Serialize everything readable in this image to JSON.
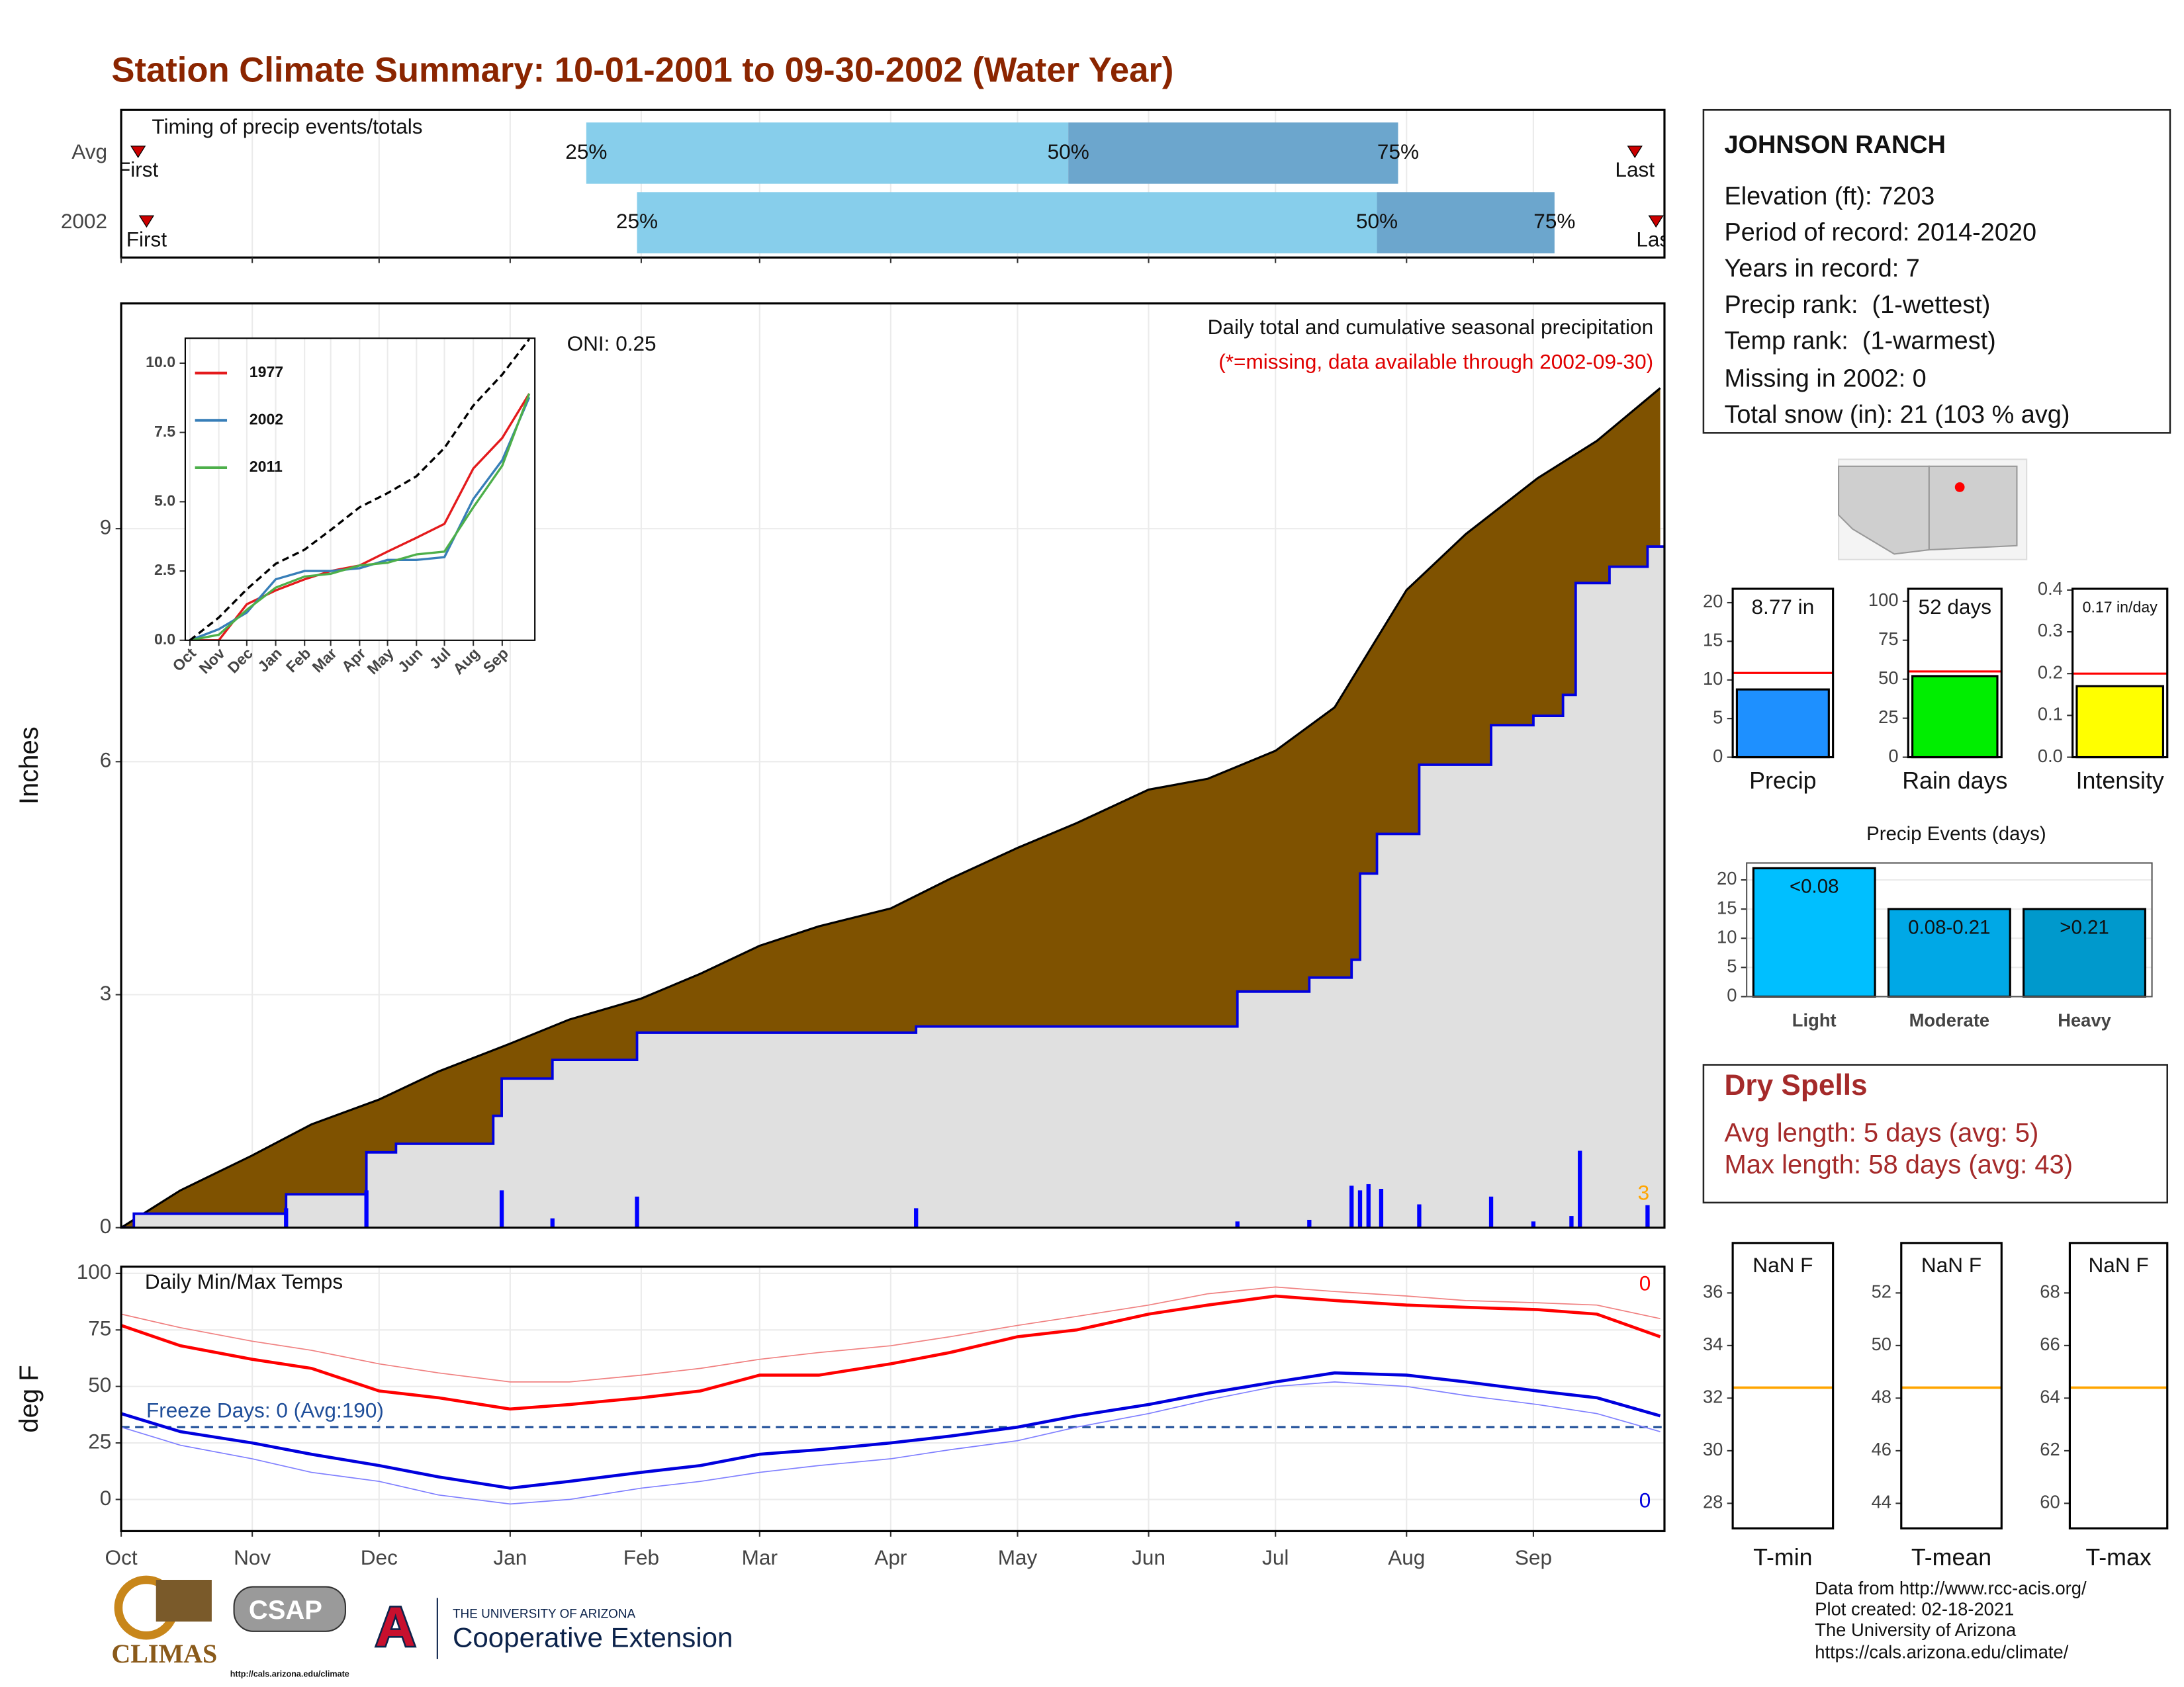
{
  "title": "Station Climate Summary: 10-01-2001 to 09-30-2002 (Water Year)",
  "station": {
    "name": "JOHNSON RANCH",
    "lines": [
      "Elevation (ft): 7203",
      "Period of record: 2014-2020",
      "Years in record: 7",
      "Precip rank:  (1-wettest)",
      "Temp rank:  (1-warmest)",
      "Missing in 2002: 0",
      "Total snow (in): 21 (103 % avg)"
    ]
  },
  "dry_spells": {
    "title": "Dry Spells",
    "lines": [
      "Avg length: 5 days (avg: 5)",
      "Max length: 58 days (avg: 43)"
    ]
  },
  "footer": [
    "Data from http://www.rcc-acis.org/",
    "Plot created: 02-18-2021",
    "The University of Arizona",
    "https://cals.arizona.edu/climate/"
  ],
  "logos": {
    "climas": "CLIMAS",
    "csap": "CSAP",
    "csap_url": "http://cals.arizona.edu/climate",
    "university": "THE UNIVERSITY OF ARIZONA",
    "extension": "Cooperative Extension"
  },
  "chart_data": [
    {
      "type": "range",
      "title": "Timing of precip events/totals",
      "categories": [
        "Avg",
        "2002"
      ],
      "first": [
        4,
        6
      ],
      "q25": [
        110,
        122
      ],
      "q50": [
        224,
        297
      ],
      "q75": [
        302,
        339
      ],
      "last": [
        358,
        363
      ],
      "labels": {
        "first": "First",
        "last": "Last",
        "q25": "25%",
        "q50": "50%",
        "q75": "75%"
      },
      "colors": [
        "#87ceeb",
        "#6ca6cd"
      ],
      "marker_color": "#cc0000",
      "xlim": [
        0,
        365
      ],
      "xticks": [
        0,
        31,
        61,
        92,
        123,
        151,
        182,
        212,
        243,
        273,
        304,
        334
      ]
    },
    {
      "type": "area",
      "title": "Daily total and cumulative seasonal precipitation",
      "subtitle": "(*=missing, data available through 2002-09-30)",
      "annotation": "ONI: 0.25",
      "corner_note": "3",
      "ylabel": "Inches",
      "xlim": [
        0,
        365
      ],
      "ylim": [
        0,
        11.9
      ],
      "yticks": [
        0,
        3,
        6,
        9
      ],
      "xticks": [
        0,
        31,
        61,
        92,
        123,
        151,
        182,
        212,
        243,
        273,
        304,
        334
      ],
      "grid": true,
      "series": [
        {
          "color": "#7f5200",
          "x": [
            0,
            14,
            31,
            45,
            61,
            75,
            92,
            106,
            123,
            137,
            151,
            165,
            182,
            196,
            212,
            226,
            243,
            257,
            273,
            287,
            304,
            318,
            335,
            349,
            364
          ],
          "values": [
            0,
            0.48,
            0.93,
            1.33,
            1.65,
            2.01,
            2.37,
            2.68,
            2.95,
            3.27,
            3.63,
            3.88,
            4.11,
            4.49,
            4.89,
            5.21,
            5.64,
            5.78,
            6.14,
            6.7,
            8.21,
            8.93,
            9.65,
            10.13,
            10.81
          ]
        },
        {
          "color": "#0000e0",
          "fill": "#e0e0e0",
          "step": true,
          "x": [
            0,
            3,
            39,
            58,
            65,
            88,
            90,
            102,
            122,
            188,
            264,
            281,
            291,
            293,
            297,
            307,
            324,
            334,
            341,
            344,
            352,
            361
          ],
          "values": [
            0,
            0.18,
            0.43,
            0.97,
            1.08,
            1.44,
            1.92,
            2.16,
            2.51,
            2.59,
            3.04,
            3.22,
            3.45,
            4.56,
            5.07,
            5.96,
            6.47,
            6.59,
            6.86,
            8.3,
            8.51,
            8.77
          ]
        },
        {
          "kind": "bars",
          "color": "#0000ff",
          "x": [
            39,
            58,
            90,
            102,
            122,
            188,
            264,
            281,
            291,
            293,
            295,
            298,
            307,
            324,
            334,
            343,
            345,
            361
          ],
          "values": [
            0.25,
            0.48,
            0.48,
            0.12,
            0.4,
            0.25,
            0.08,
            0.1,
            0.54,
            0.48,
            0.56,
            0.5,
            0.3,
            0.4,
            0.08,
            0.15,
            0.99,
            0.29
          ]
        }
      ]
    },
    {
      "type": "line",
      "xlim": [
        -5,
        370
      ],
      "ylim": [
        0,
        10.9
      ],
      "yticks": [
        {
          "value": 0,
          "label": "0.0"
        },
        {
          "value": 2.5,
          "label": "2.5"
        },
        {
          "value": 5,
          "label": "5.0"
        },
        {
          "value": 7.5,
          "label": "7.5"
        },
        {
          "value": 10,
          "label": "10.0"
        }
      ],
      "xticks": [
        {
          "value": 0,
          "label": "Oct"
        },
        {
          "value": 31,
          "label": "Nov"
        },
        {
          "value": 61,
          "label": "Dec"
        },
        {
          "value": 92,
          "label": "Jan"
        },
        {
          "value": 123,
          "label": "Feb"
        },
        {
          "value": 151,
          "label": "Mar"
        },
        {
          "value": 182,
          "label": "Apr"
        },
        {
          "value": 212,
          "label": "May"
        },
        {
          "value": 243,
          "label": "Jun"
        },
        {
          "value": 273,
          "label": "Jul"
        },
        {
          "value": 304,
          "label": "Aug"
        },
        {
          "value": 335,
          "label": "Sep"
        }
      ],
      "x": [
        0,
        31,
        61,
        92,
        123,
        151,
        182,
        212,
        243,
        273,
        304,
        335,
        364
      ],
      "series": [
        {
          "name": "1977",
          "color": "#e41a1c",
          "values": [
            0,
            0,
            1.3,
            1.8,
            2.2,
            2.5,
            2.7,
            3.2,
            3.7,
            4.2,
            6.2,
            7.3,
            8.9
          ]
        },
        {
          "name": "2002",
          "color": "#377eb8",
          "values": [
            0,
            0.4,
            1.0,
            2.2,
            2.5,
            2.5,
            2.6,
            2.9,
            2.9,
            3.0,
            5.1,
            6.5,
            8.77
          ]
        },
        {
          "name": "2011",
          "color": "#4daf4a",
          "values": [
            0,
            0.2,
            1.1,
            1.9,
            2.3,
            2.4,
            2.7,
            2.8,
            3.1,
            3.2,
            4.8,
            6.3,
            8.9
          ]
        },
        {
          "color": "#000000",
          "dash": true,
          "values": [
            0,
            0.82,
            1.84,
            2.76,
            3.27,
            3.98,
            4.8,
            5.31,
            5.92,
            6.94,
            8.47,
            9.59,
            10.87
          ]
        }
      ]
    },
    {
      "type": "line",
      "title": "Daily Min/Max Temps",
      "ylabel": "deg F",
      "annotation": "Freeze Days: 0 (Avg:190)",
      "max_note": "0",
      "min_note": "0",
      "freeze_line": 32,
      "xlim": [
        0,
        365
      ],
      "ylim": [
        -14,
        103
      ],
      "yticks": [
        0,
        25,
        50,
        75,
        100
      ],
      "grid": true,
      "xticks": [
        {
          "value": 0,
          "label": "Oct"
        },
        {
          "value": 31,
          "label": "Nov"
        },
        {
          "value": 61,
          "label": "Dec"
        },
        {
          "value": 92,
          "label": "Jan"
        },
        {
          "value": 123,
          "label": "Feb"
        },
        {
          "value": 151,
          "label": "Mar"
        },
        {
          "value": 182,
          "label": "Apr"
        },
        {
          "value": 212,
          "label": "May"
        },
        {
          "value": 243,
          "label": "Jun"
        },
        {
          "value": 273,
          "label": "Jul"
        },
        {
          "value": 304,
          "label": "Aug"
        },
        {
          "value": 334,
          "label": "Sep"
        }
      ],
      "x": [
        0,
        14,
        31,
        45,
        61,
        75,
        92,
        106,
        123,
        137,
        151,
        165,
        182,
        196,
        212,
        226,
        243,
        257,
        273,
        287,
        304,
        318,
        335,
        349,
        364
      ],
      "series": [
        {
          "color": "#f08080",
          "line_width": 0.8,
          "values": [
            82,
            76,
            70,
            66,
            60,
            56,
            52,
            52,
            55,
            58,
            62,
            65,
            68,
            72,
            77,
            81,
            86,
            91,
            94,
            92,
            90,
            88,
            87,
            86,
            80
          ]
        },
        {
          "color": "#ff0000",
          "line_width": 2.2,
          "values": [
            77,
            68,
            62,
            58,
            48,
            45,
            40,
            42,
            45,
            48,
            55,
            55,
            60,
            65,
            72,
            75,
            82,
            86,
            90,
            88,
            86,
            85,
            84,
            82,
            72
          ]
        },
        {
          "color": "#7f7fff",
          "line_width": 0.8,
          "values": [
            32,
            24,
            18,
            12,
            8,
            2,
            -2,
            0,
            5,
            8,
            12,
            15,
            18,
            22,
            26,
            32,
            38,
            44,
            50,
            52,
            50,
            46,
            42,
            38,
            30
          ]
        },
        {
          "color": "#0000dd",
          "line_width": 2.2,
          "values": [
            38,
            30,
            25,
            20,
            15,
            10,
            5,
            8,
            12,
            15,
            20,
            22,
            25,
            28,
            32,
            37,
            42,
            47,
            52,
            56,
            55,
            52,
            48,
            45,
            37
          ]
        }
      ]
    },
    {
      "type": "bar",
      "categories": [
        "Precip"
      ],
      "values": [
        8.77
      ],
      "value_labels": [
        "8.77 in"
      ],
      "average": 10.9,
      "color": "#1e90ff",
      "ylim": [
        0,
        21.8
      ],
      "yticks": [
        0,
        5,
        10,
        15,
        20
      ]
    },
    {
      "type": "bar",
      "categories": [
        "Rain days"
      ],
      "values": [
        52
      ],
      "value_labels": [
        "52 days"
      ],
      "average": 55,
      "color": "#00ee00",
      "ylim": [
        0,
        108
      ],
      "yticks": [
        0,
        25,
        50,
        75,
        100
      ]
    },
    {
      "type": "bar",
      "categories": [
        "Intensity"
      ],
      "values": [
        0.17
      ],
      "value_labels": [
        "0.17 in/day"
      ],
      "average": 0.2,
      "color": "#ffff00",
      "ylim": [
        0,
        0.403
      ],
      "yticks": [
        {
          "value": 0,
          "label": "0.0"
        },
        {
          "value": 0.1,
          "label": "0.1"
        },
        {
          "value": 0.2,
          "label": "0.2"
        },
        {
          "value": 0.3,
          "label": "0.3"
        },
        {
          "value": 0.4,
          "label": "0.4"
        }
      ]
    },
    {
      "type": "bar",
      "title": "Precip Events (days)",
      "categories": [
        "Light",
        "Moderate",
        "Heavy"
      ],
      "values": [
        22,
        15,
        15
      ],
      "bin_labels": [
        "<0.08",
        "0.08-0.21",
        ">0.21"
      ],
      "colors": [
        "#00bfff",
        "#00a8e6",
        "#0099cc"
      ],
      "ylim": [
        0,
        22.9
      ],
      "yticks": [
        0,
        5,
        10,
        15,
        20
      ],
      "grid": true
    },
    {
      "type": "hline",
      "label": "NaN F",
      "category": "T-min",
      "values": [
        32.4
      ],
      "color": "#ffa500",
      "ylim": [
        27.05,
        37.9
      ],
      "yticks": [
        28,
        30,
        32,
        34,
        36
      ]
    },
    {
      "type": "hline",
      "label": "NaN F",
      "category": "T-mean",
      "values": [
        48.4
      ],
      "color": "#ffa500",
      "ylim": [
        43.05,
        53.9
      ],
      "yticks": [
        44,
        46,
        48,
        50,
        52
      ]
    },
    {
      "type": "hline",
      "label": "NaN F",
      "category": "T-max",
      "values": [
        64.4
      ],
      "color": "#ffa500",
      "ylim": [
        59.05,
        69.9
      ],
      "yticks": [
        60,
        62,
        64,
        66,
        68
      ]
    }
  ]
}
